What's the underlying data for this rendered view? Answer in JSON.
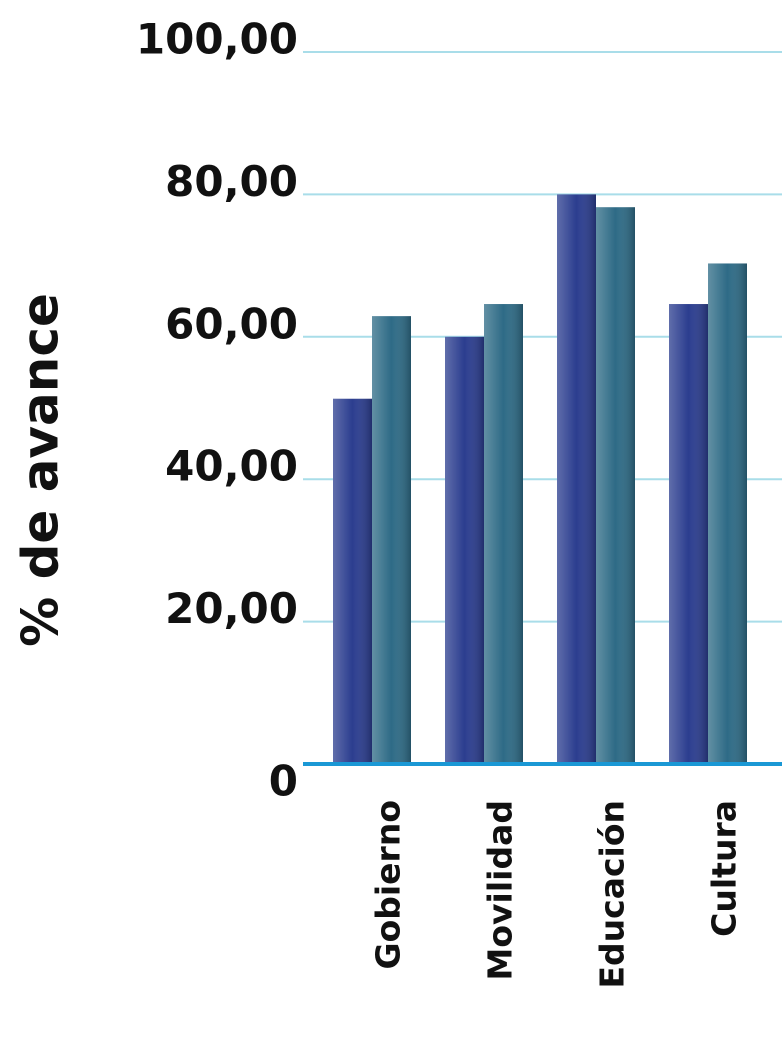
{
  "chart_data": {
    "type": "bar",
    "y_label": "% de avance",
    "categories": [
      "Gobierno",
      "Movilidad",
      "Educación",
      "Cultura"
    ],
    "series": [
      {
        "color": "#2b3d8f",
        "values": [
          51.3,
          60.0,
          80.0,
          64.6
        ]
      },
      {
        "color": "#2e6b86",
        "values": [
          62.9,
          64.6,
          78.2,
          70.3
        ]
      }
    ],
    "ylim": [
      0,
      100
    ],
    "yticks": [
      {
        "value": 0,
        "label": "0"
      },
      {
        "value": 20,
        "label": "20,00"
      },
      {
        "value": 40,
        "label": "40,00"
      },
      {
        "value": 60,
        "label": "60,00"
      },
      {
        "value": 80,
        "label": "80,00"
      },
      {
        "value": 100,
        "label": "100,00"
      }
    ],
    "grid": true
  }
}
